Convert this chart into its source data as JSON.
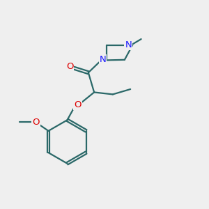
{
  "bg_color": "#efefef",
  "bond_color": "#2a6868",
  "bond_width": 1.6,
  "o_color": "#dd0000",
  "n_color": "#1a1aff",
  "figsize": [
    3.0,
    3.0
  ],
  "dpi": 100,
  "xlim": [
    -1,
    9
  ],
  "ylim": [
    -1,
    9
  ]
}
